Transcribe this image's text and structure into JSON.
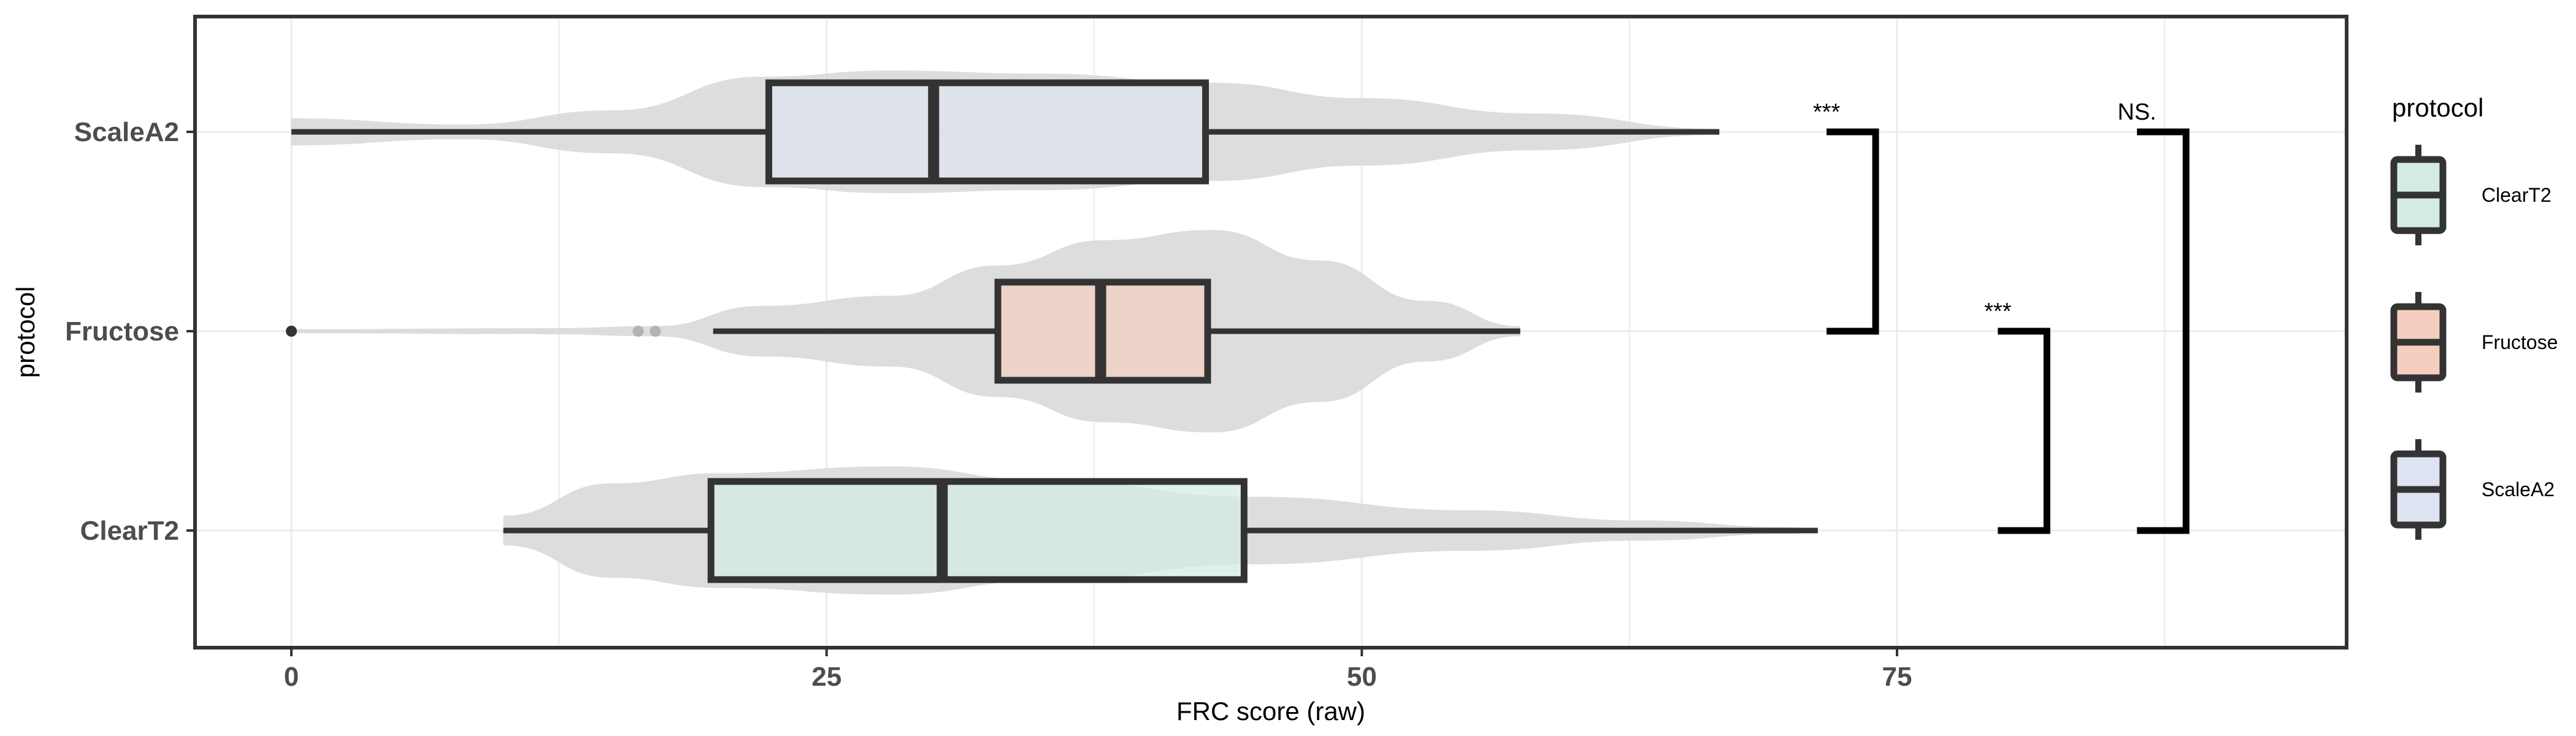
{
  "chart_data": {
    "type": "boxplot",
    "title": "",
    "xlabel": "FRC score (raw)",
    "ylabel": "protocol",
    "xlim": [
      -4.5,
      96
    ],
    "xticks": [
      0,
      25,
      50,
      75
    ],
    "grid": true,
    "categories": [
      "ScaleA2",
      "Fructose",
      "ClearT2"
    ],
    "boxes": [
      {
        "name": "ScaleA2",
        "whisker_low": 0,
        "q1": 22.3,
        "median": 30,
        "q3": 42.7,
        "whisker_high": 66.7,
        "fill": "#dde3f0",
        "outliers": [],
        "violin_min": 0,
        "violin_max": 66.7
      },
      {
        "name": "Fructose",
        "whisker_low": 19.7,
        "q1": 33,
        "median": 37.8,
        "q3": 42.8,
        "whisker_high": 57.4,
        "fill": "#f4cfc0",
        "outliers": [
          0,
          16.2,
          17
        ],
        "violin_min": 0,
        "violin_max": 57.4
      },
      {
        "name": "ClearT2",
        "whisker_low": 9.9,
        "q1": 19.6,
        "median": 30.4,
        "q3": 44.5,
        "whisker_high": 71.3,
        "fill": "#d3ece2",
        "outliers": [],
        "violin_min": 9.9,
        "violin_max": 71.3
      }
    ],
    "significance": [
      {
        "label": "***",
        "from": "ScaleA2",
        "to": "Fructose",
        "x": 74
      },
      {
        "label": "***",
        "from": "Fructose",
        "to": "ClearT2",
        "x": 82
      },
      {
        "label": "NS.",
        "from": "ScaleA2",
        "to": "ClearT2",
        "x": 88.5
      }
    ],
    "legend": {
      "title": "protocol",
      "position": "right",
      "items": [
        {
          "label": "ClearT2",
          "fill": "#d3ece2"
        },
        {
          "label": "Fructose",
          "fill": "#f4cfc0"
        },
        {
          "label": "ScaleA2",
          "fill": "#dde3f0"
        }
      ]
    },
    "colors": {
      "violin": "#d9d9d9",
      "box_stroke": "#333333",
      "panel_border": "#333333",
      "grid": "#ebebeb"
    }
  }
}
